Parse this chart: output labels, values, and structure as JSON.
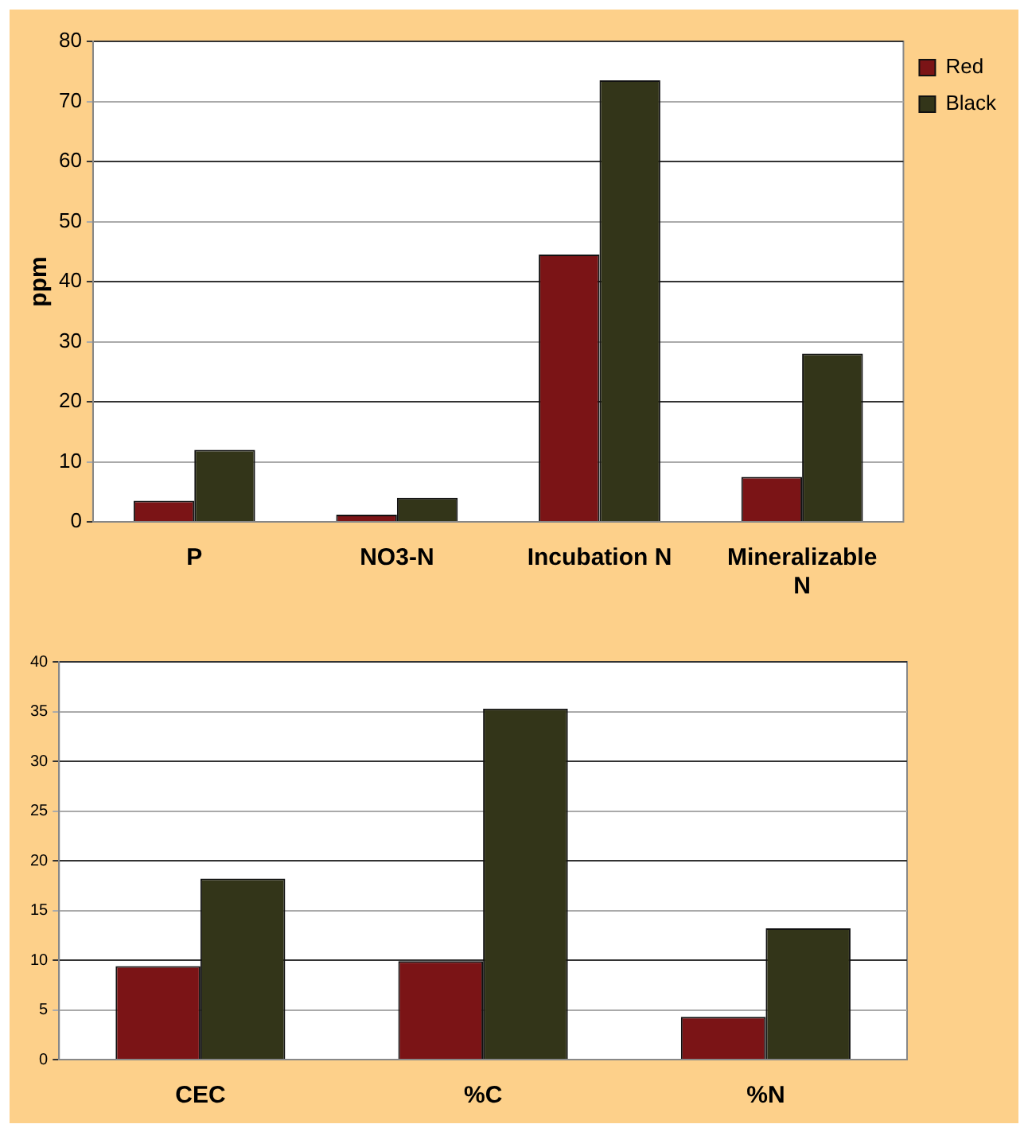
{
  "chart_data": [
    {
      "type": "bar",
      "ylabel": "ppm",
      "categories": [
        "P",
        "NO3-N",
        "Incubation N",
        "Mineralizable N"
      ],
      "series": [
        {
          "name": "Red",
          "color": "#7b1416",
          "values": [
            3.5,
            1.2,
            44.5,
            7.5
          ]
        },
        {
          "name": "Black",
          "color": "#333519",
          "values": [
            12,
            4,
            73.5,
            28
          ]
        }
      ],
      "ylim": [
        0,
        80
      ],
      "yticks": [
        0,
        10,
        20,
        30,
        40,
        50,
        60,
        70,
        80
      ],
      "grid": "y",
      "legend": "top right"
    },
    {
      "type": "bar",
      "categories": [
        "CEC",
        "%C",
        "%N"
      ],
      "series": [
        {
          "color": "#7b1416",
          "values": [
            9.4,
            9.9,
            4.3
          ]
        },
        {
          "color": "#333519",
          "values": [
            18.2,
            35.3,
            13.2
          ]
        }
      ],
      "ylim": [
        0,
        40
      ],
      "yticks": [
        0,
        5,
        10,
        15,
        20,
        25,
        30,
        35,
        40
      ],
      "grid": "y"
    }
  ]
}
